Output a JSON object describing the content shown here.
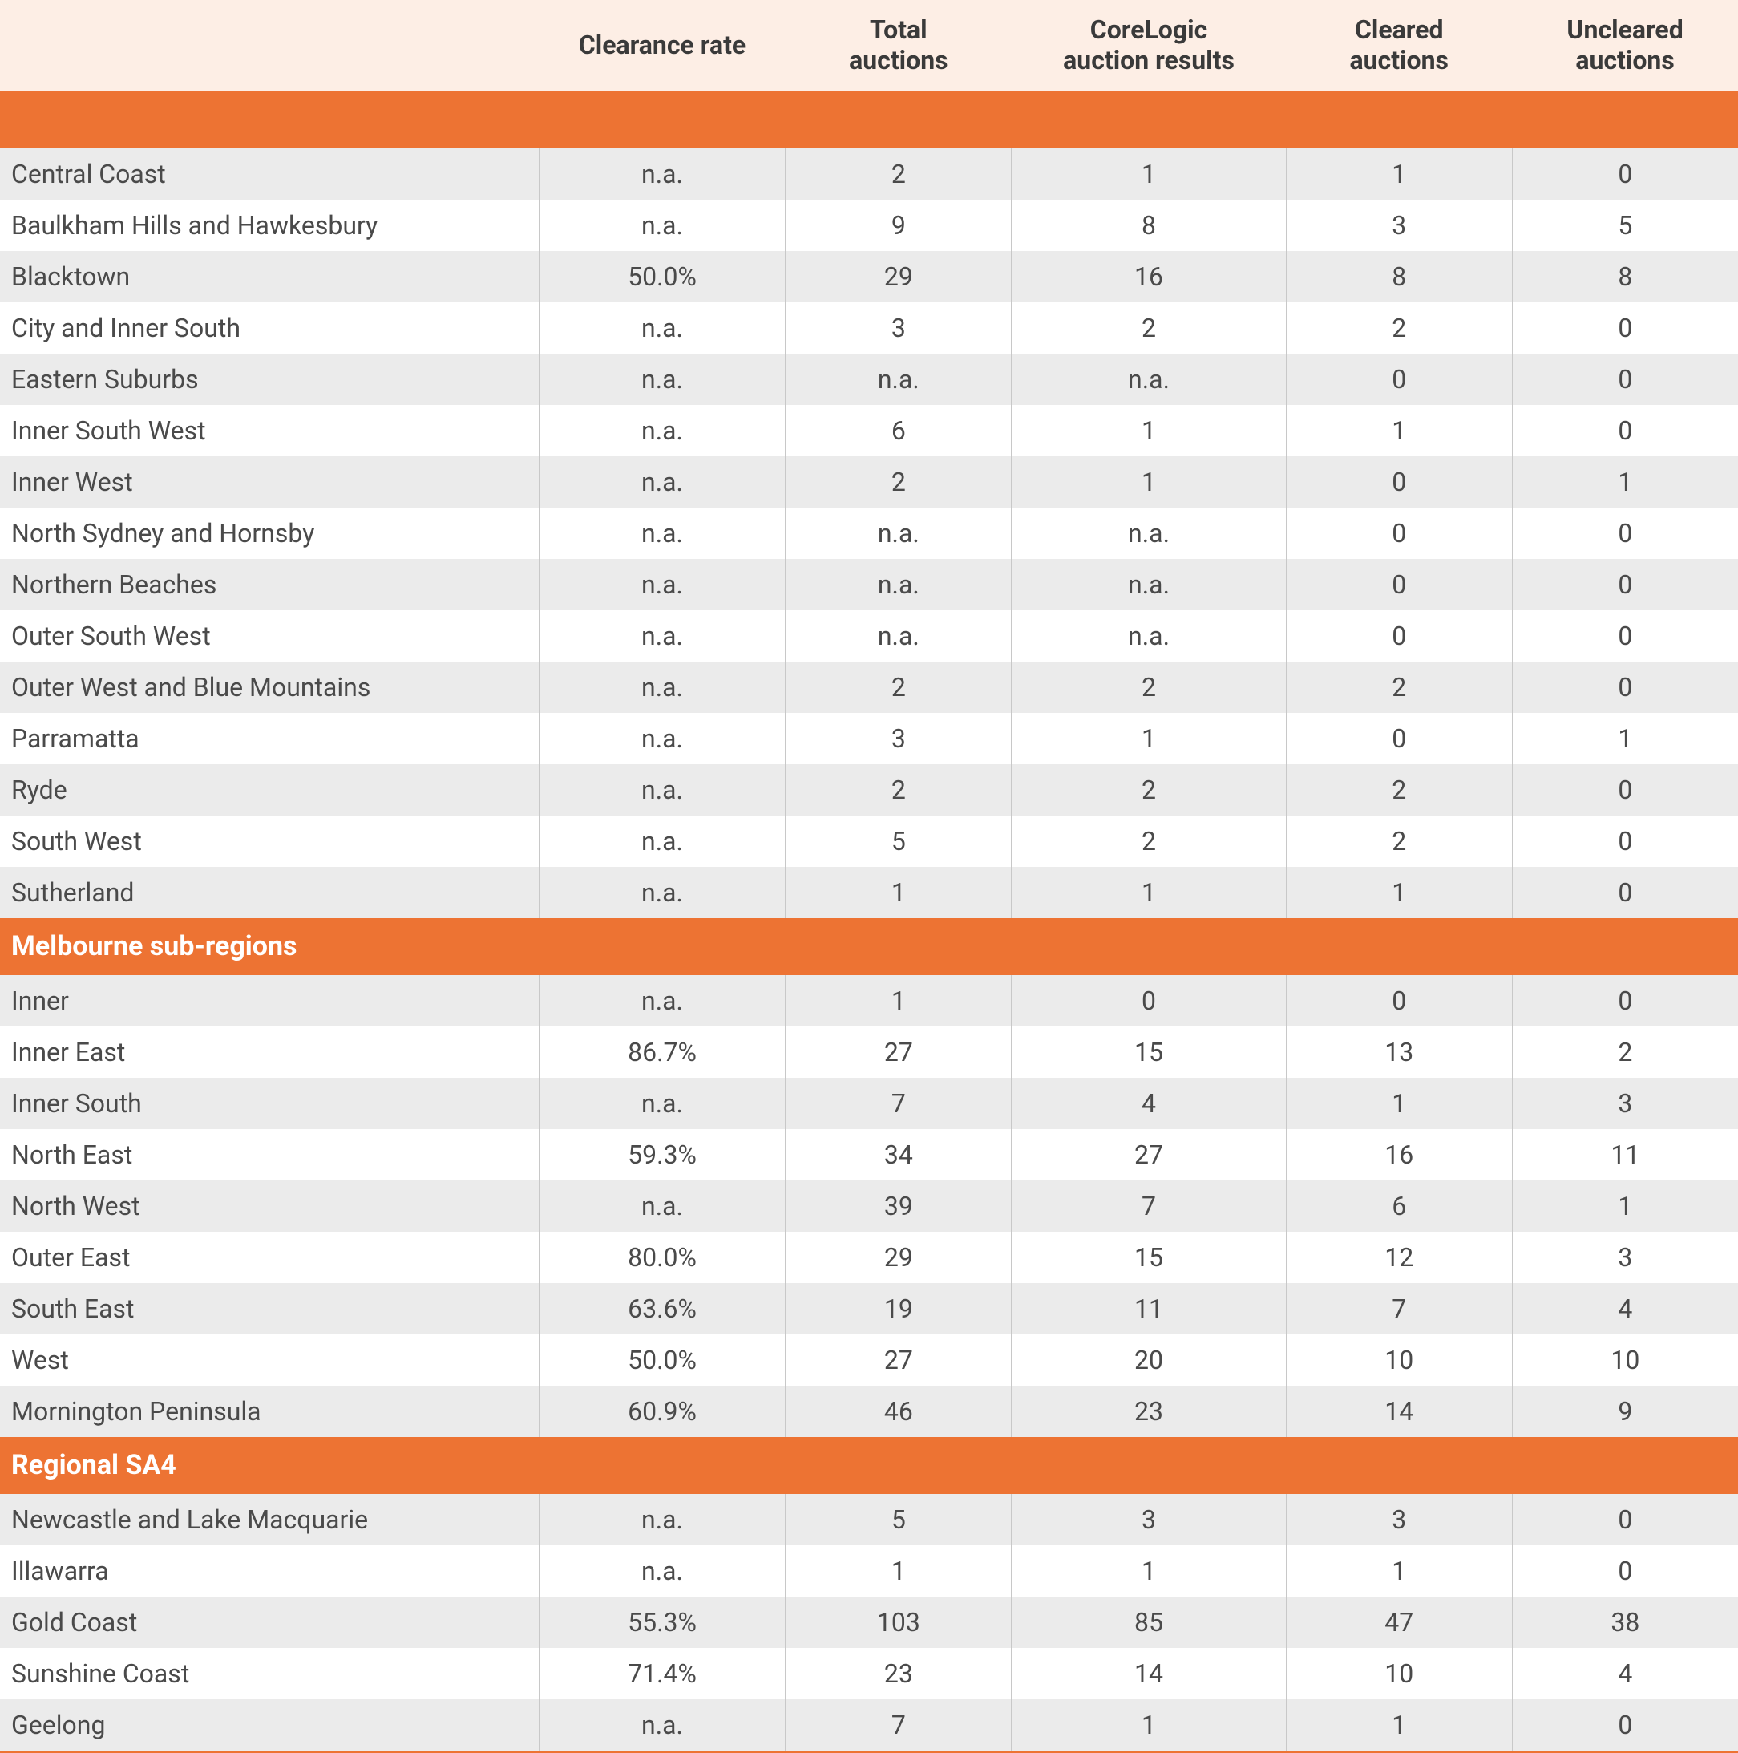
{
  "colors": {
    "header_bg": "#fdeee5",
    "section_bg": "#ed7333",
    "section_text": "#ffffff",
    "row_even_bg": "#ebebeb",
    "row_odd_bg": "#ffffff",
    "text": "#4a4a4a",
    "cell_border": "#c8c8c8",
    "bottom_border": "#ed7333"
  },
  "typography": {
    "header_fontsize_pt": 16,
    "header_fontweight": "700",
    "body_fontsize_pt": 16,
    "section_fontsize_pt": 17,
    "font_family": "sans-serif"
  },
  "columns": [
    {
      "key": "region",
      "label": "",
      "align": "left",
      "width_pct": 31
    },
    {
      "key": "clearance",
      "label": "Clearance rate",
      "align": "center",
      "width_pct": 14.2
    },
    {
      "key": "total",
      "label": "Total auctions",
      "align": "center",
      "width_pct": 13
    },
    {
      "key": "corelogic",
      "label": "CoreLogic auction results",
      "align": "center",
      "width_pct": 15.8
    },
    {
      "key": "cleared",
      "label": "Cleared auctions",
      "align": "center",
      "width_pct": 13
    },
    {
      "key": "uncleared",
      "label": "Uncleared auctions",
      "align": "center",
      "width_pct": 13
    }
  ],
  "sections": [
    {
      "title": "",
      "rows": [
        {
          "region": "Central Coast",
          "clearance": "n.a.",
          "total": "2",
          "corelogic": "1",
          "cleared": "1",
          "uncleared": "0"
        },
        {
          "region": "Baulkham Hills and Hawkesbury",
          "clearance": "n.a.",
          "total": "9",
          "corelogic": "8",
          "cleared": "3",
          "uncleared": "5"
        },
        {
          "region": "Blacktown",
          "clearance": "50.0%",
          "total": "29",
          "corelogic": "16",
          "cleared": "8",
          "uncleared": "8"
        },
        {
          "region": "City and Inner South",
          "clearance": "n.a.",
          "total": "3",
          "corelogic": "2",
          "cleared": "2",
          "uncleared": "0"
        },
        {
          "region": "Eastern Suburbs",
          "clearance": "n.a.",
          "total": "n.a.",
          "corelogic": "n.a.",
          "cleared": "0",
          "uncleared": "0"
        },
        {
          "region": "Inner South West",
          "clearance": "n.a.",
          "total": "6",
          "corelogic": "1",
          "cleared": "1",
          "uncleared": "0"
        },
        {
          "region": "Inner West",
          "clearance": "n.a.",
          "total": "2",
          "corelogic": "1",
          "cleared": "0",
          "uncleared": "1"
        },
        {
          "region": "North Sydney and Hornsby",
          "clearance": "n.a.",
          "total": "n.a.",
          "corelogic": "n.a.",
          "cleared": "0",
          "uncleared": "0"
        },
        {
          "region": "Northern Beaches",
          "clearance": "n.a.",
          "total": "n.a.",
          "corelogic": "n.a.",
          "cleared": "0",
          "uncleared": "0"
        },
        {
          "region": "Outer South West",
          "clearance": "n.a.",
          "total": "n.a.",
          "corelogic": "n.a.",
          "cleared": "0",
          "uncleared": "0"
        },
        {
          "region": "Outer West and Blue Mountains",
          "clearance": "n.a.",
          "total": "2",
          "corelogic": "2",
          "cleared": "2",
          "uncleared": "0"
        },
        {
          "region": "Parramatta",
          "clearance": "n.a.",
          "total": "3",
          "corelogic": "1",
          "cleared": "0",
          "uncleared": "1"
        },
        {
          "region": "Ryde",
          "clearance": "n.a.",
          "total": "2",
          "corelogic": "2",
          "cleared": "2",
          "uncleared": "0"
        },
        {
          "region": "South West",
          "clearance": "n.a.",
          "total": "5",
          "corelogic": "2",
          "cleared": "2",
          "uncleared": "0"
        },
        {
          "region": "Sutherland",
          "clearance": "n.a.",
          "total": "1",
          "corelogic": "1",
          "cleared": "1",
          "uncleared": "0"
        }
      ]
    },
    {
      "title": "Melbourne sub-regions",
      "rows": [
        {
          "region": "Inner",
          "clearance": "n.a.",
          "total": "1",
          "corelogic": "0",
          "cleared": "0",
          "uncleared": "0"
        },
        {
          "region": "Inner East",
          "clearance": "86.7%",
          "total": "27",
          "corelogic": "15",
          "cleared": "13",
          "uncleared": "2"
        },
        {
          "region": "Inner South",
          "clearance": "n.a.",
          "total": "7",
          "corelogic": "4",
          "cleared": "1",
          "uncleared": "3"
        },
        {
          "region": "North East",
          "clearance": "59.3%",
          "total": "34",
          "corelogic": "27",
          "cleared": "16",
          "uncleared": "11"
        },
        {
          "region": "North West",
          "clearance": "n.a.",
          "total": "39",
          "corelogic": "7",
          "cleared": "6",
          "uncleared": "1"
        },
        {
          "region": "Outer East",
          "clearance": "80.0%",
          "total": "29",
          "corelogic": "15",
          "cleared": "12",
          "uncleared": "3"
        },
        {
          "region": "South East",
          "clearance": "63.6%",
          "total": "19",
          "corelogic": "11",
          "cleared": "7",
          "uncleared": "4"
        },
        {
          "region": "West",
          "clearance": "50.0%",
          "total": "27",
          "corelogic": "20",
          "cleared": "10",
          "uncleared": "10"
        },
        {
          "region": "Mornington Peninsula",
          "clearance": "60.9%",
          "total": "46",
          "corelogic": "23",
          "cleared": "14",
          "uncleared": "9"
        }
      ]
    },
    {
      "title": "Regional SA4",
      "rows": [
        {
          "region": "Newcastle and Lake Macquarie",
          "clearance": "n.a.",
          "total": "5",
          "corelogic": "3",
          "cleared": "3",
          "uncleared": "0"
        },
        {
          "region": "Illawarra",
          "clearance": "n.a.",
          "total": "1",
          "corelogic": "1",
          "cleared": "1",
          "uncleared": "0"
        },
        {
          "region": "Gold Coast",
          "clearance": "55.3%",
          "total": "103",
          "corelogic": "85",
          "cleared": "47",
          "uncleared": "38"
        },
        {
          "region": "Sunshine Coast",
          "clearance": "71.4%",
          "total": "23",
          "corelogic": "14",
          "cleared": "10",
          "uncleared": "4"
        },
        {
          "region": "Geelong",
          "clearance": "n.a.",
          "total": "7",
          "corelogic": "1",
          "cleared": "1",
          "uncleared": "0"
        }
      ]
    }
  ]
}
